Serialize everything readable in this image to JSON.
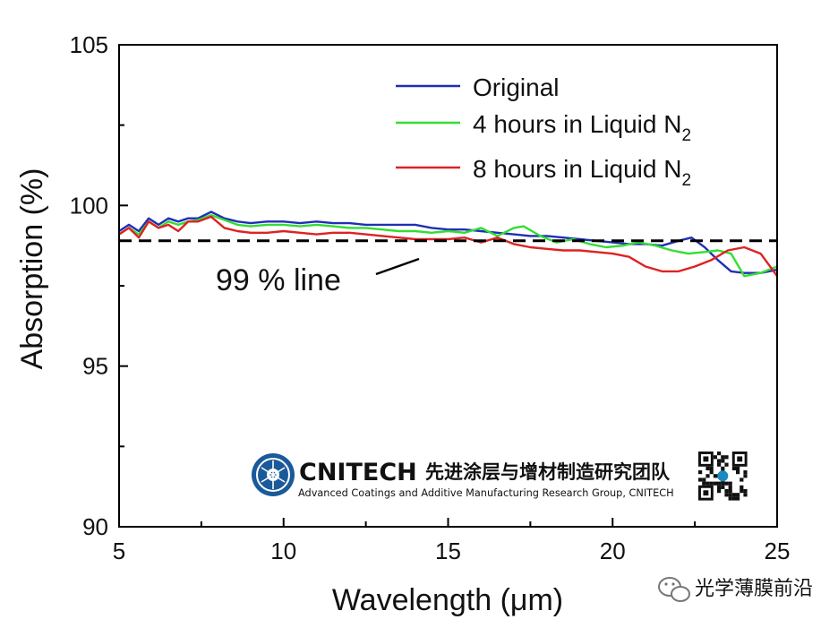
{
  "chart_data": {
    "type": "line",
    "xlabel": "Wavelength (μm)",
    "ylabel": "Absorption (%)",
    "xlim": [
      5,
      25
    ],
    "ylim": [
      90,
      105
    ],
    "xticks": [
      5,
      10,
      15,
      20,
      25
    ],
    "yticks": [
      90,
      95,
      100,
      105
    ],
    "grid": false,
    "legend_position": "top-right",
    "series": [
      {
        "name": "Original",
        "color": "#1f2fb5",
        "x": [
          5,
          5.3,
          5.6,
          5.9,
          6.2,
          6.5,
          6.8,
          7.1,
          7.4,
          7.8,
          8.2,
          8.6,
          9,
          9.5,
          10,
          10.5,
          11,
          11.5,
          12,
          12.5,
          13,
          13.5,
          14,
          14.5,
          15,
          15.5,
          16,
          16.5,
          17,
          17.5,
          18,
          18.5,
          19,
          19.5,
          20,
          20.5,
          21,
          21.5,
          22,
          22.4,
          22.8,
          23.2,
          23.6,
          24,
          24.5,
          25
        ],
        "y": [
          99.2,
          99.4,
          99.2,
          99.6,
          99.4,
          99.6,
          99.5,
          99.6,
          99.6,
          99.8,
          99.6,
          99.5,
          99.45,
          99.5,
          99.5,
          99.45,
          99.5,
          99.45,
          99.45,
          99.4,
          99.4,
          99.4,
          99.4,
          99.3,
          99.25,
          99.25,
          99.2,
          99.15,
          99.1,
          99.05,
          99.05,
          99.0,
          98.95,
          98.9,
          98.85,
          98.8,
          98.8,
          98.75,
          98.9,
          99.0,
          98.7,
          98.3,
          97.95,
          97.9,
          97.9,
          98.0
        ]
      },
      {
        "name": "4 hours in Liquid N",
        "name_sub": "2",
        "color": "#33dd33",
        "x": [
          5,
          5.3,
          5.6,
          5.9,
          6.2,
          6.5,
          6.8,
          7.1,
          7.4,
          7.8,
          8.2,
          8.6,
          9,
          9.5,
          10,
          10.5,
          11,
          11.5,
          12,
          12.5,
          13,
          13.5,
          14,
          14.5,
          15,
          15.5,
          16,
          16.5,
          17,
          17.3,
          17.8,
          18.3,
          18.8,
          19.3,
          19.8,
          20.3,
          20.8,
          21.3,
          21.8,
          22.3,
          22.8,
          23.2,
          23.6,
          24,
          24.5,
          25
        ],
        "y": [
          99.1,
          99.3,
          99.1,
          99.5,
          99.3,
          99.5,
          99.4,
          99.5,
          99.55,
          99.7,
          99.55,
          99.4,
          99.35,
          99.4,
          99.4,
          99.35,
          99.4,
          99.35,
          99.3,
          99.3,
          99.25,
          99.2,
          99.2,
          99.15,
          99.2,
          99.15,
          99.3,
          99.05,
          99.3,
          99.35,
          99.05,
          98.85,
          98.95,
          98.8,
          98.7,
          98.75,
          98.85,
          98.75,
          98.6,
          98.5,
          98.55,
          98.6,
          98.5,
          97.8,
          97.9,
          98.1
        ]
      },
      {
        "name": "8 hours in Liquid N",
        "name_sub": "2",
        "color": "#dd2222",
        "x": [
          5,
          5.3,
          5.6,
          5.9,
          6.2,
          6.5,
          6.8,
          7.1,
          7.4,
          7.8,
          8.2,
          8.6,
          9,
          9.5,
          10,
          10.5,
          11,
          11.5,
          12,
          12.5,
          13,
          13.5,
          14,
          14.5,
          15,
          15.5,
          16,
          16.5,
          17,
          17.5,
          18,
          18.5,
          19,
          19.5,
          20,
          20.5,
          21,
          21.5,
          22,
          22.5,
          23,
          23.5,
          24,
          24.5,
          25
        ],
        "y": [
          99.1,
          99.3,
          99.0,
          99.5,
          99.3,
          99.4,
          99.2,
          99.5,
          99.5,
          99.65,
          99.3,
          99.2,
          99.15,
          99.15,
          99.2,
          99.15,
          99.1,
          99.15,
          99.15,
          99.1,
          99.05,
          99.0,
          98.95,
          98.95,
          98.95,
          99.0,
          98.85,
          99.0,
          98.8,
          98.7,
          98.65,
          98.6,
          98.6,
          98.55,
          98.5,
          98.4,
          98.1,
          97.95,
          97.95,
          98.1,
          98.3,
          98.6,
          98.7,
          98.5,
          97.8
        ]
      }
    ],
    "reference_line": {
      "value": 98.9,
      "style": "dashed",
      "color": "#000000",
      "label": "99 % line"
    }
  },
  "watermark": {
    "brand": "CNITECH",
    "brand_cn": "先进涂层与增材制造研究团队",
    "subtitle": "Advanced Coatings and Additive Manufacturing Research Group, CNITECH",
    "brand_color": "#1a5a9a",
    "cn_color": "#cc1f1f",
    "logo_icon": "emblem-icon",
    "qr_icon": "qr-code-icon"
  },
  "footer": {
    "wechat_icon": "wechat-icon",
    "account_name": "光学薄膜前沿"
  }
}
